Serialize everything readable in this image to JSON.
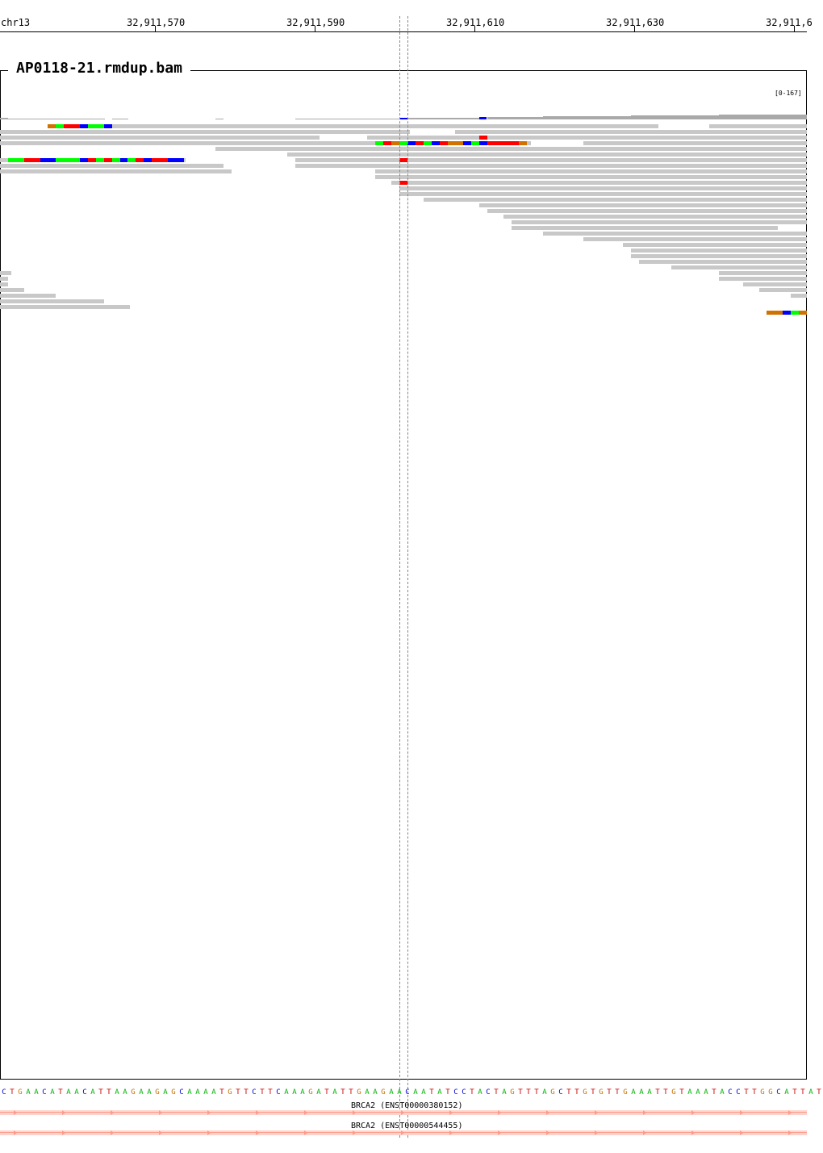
{
  "ruler": {
    "chromosome": "chr13",
    "ticks": [
      "32,911,570",
      "32,911,590",
      "32,911,610",
      "32,911,630",
      "32,911,6"
    ]
  },
  "track": {
    "title": "AP0118-21.rmdup.bam",
    "data_range": "[0-167]"
  },
  "reference_sequence": "CTGAACATAACATTAAGAAGAGCAAAATGTTCTTCAAAGATATTGAAGAACAATATCCTACTAGTTTAGCTTGTGTTGAAATTGTAAATACCTTGGCATTAT",
  "base_colors": {
    "A": "#00b000",
    "C": "#0000cc",
    "G": "#c87000",
    "T": "#cc0000"
  },
  "mismatch_colors": {
    "A": "#00ff00",
    "C": "#0000ff",
    "G": "#d17100",
    "T": "#ff0000"
  },
  "genes": [
    {
      "label": "BRCA2 (ENST00000380152)"
    },
    {
      "label": "BRCA2 (ENST00000544455)"
    }
  ]
}
